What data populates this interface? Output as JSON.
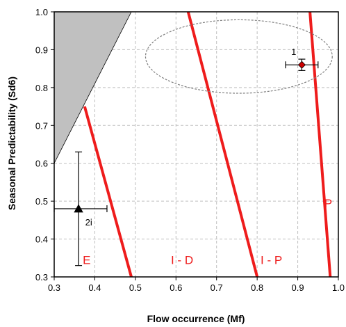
{
  "chart_data": {
    "type": "scatter",
    "title": "",
    "xlabel": "Flow   occurrence (Mf)",
    "ylabel": "Seasonal Predictability (Sd6)",
    "xlim": [
      0.3,
      1.0
    ],
    "ylim": [
      0.3,
      1.0
    ],
    "xticks": [
      "0.3",
      "0.4",
      "0.5",
      "0.6",
      "0.7",
      "0.8",
      "0.9",
      "1.0"
    ],
    "yticks": [
      "0.3",
      "0.4",
      "0.5",
      "0.6",
      "0.7",
      "0.8",
      "0.9",
      "1.0"
    ],
    "grid": true,
    "grid_style": "dashed",
    "colors": {
      "boundary": "#ee1c1c",
      "shaded": "#c0c0c0",
      "ellipse": "#808080",
      "grid": "#bfbfbf"
    },
    "shaded_region": {
      "points": [
        [
          0.3,
          1.0
        ],
        [
          0.3,
          0.6
        ],
        [
          0.49,
          1.0
        ]
      ]
    },
    "boundaries": [
      {
        "points": [
          [
            0.375,
            0.75
          ],
          [
            0.49,
            0.3
          ]
        ]
      },
      {
        "points": [
          [
            0.63,
            1.0
          ],
          [
            0.8,
            0.3
          ]
        ]
      },
      {
        "points": [
          [
            0.93,
            1.0
          ],
          [
            0.98,
            0.3
          ]
        ]
      }
    ],
    "zones": [
      {
        "label": "E",
        "x": 0.38,
        "y": 0.345,
        "color": "#ee1c1c"
      },
      {
        "label": "I - D",
        "x": 0.615,
        "y": 0.345,
        "color": "#ee1c1c"
      },
      {
        "label": "I - P",
        "x": 0.835,
        "y": 0.345,
        "color": "#ee1c1c"
      },
      {
        "label": "P",
        "x": 0.975,
        "y": 0.495,
        "color": "#ee1c1c"
      }
    ],
    "points": [
      {
        "label": "1",
        "x": 0.91,
        "y": 0.86,
        "x_err": [
          0.87,
          0.95
        ],
        "y_err": [
          0.845,
          0.875
        ],
        "marker": "diamond",
        "color": "#cc0000",
        "label_x": 0.89,
        "label_y": 0.895
      },
      {
        "label": "2i",
        "x": 0.36,
        "y": 0.48,
        "x_err": [
          0.3,
          0.43
        ],
        "y_err": [
          0.33,
          0.63
        ],
        "marker": "triangle",
        "color": "#000000",
        "label_x": 0.385,
        "label_y": 0.445
      }
    ],
    "ellipse": {
      "cx": 0.755,
      "cy": 0.882,
      "rx": 0.23,
      "ry": 0.097
    }
  }
}
